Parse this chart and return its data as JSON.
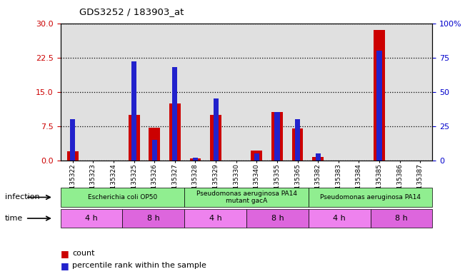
{
  "title": "GDS3252 / 183903_at",
  "samples": [
    "GSM135322",
    "GSM135323",
    "GSM135324",
    "GSM135325",
    "GSM135326",
    "GSM135327",
    "GSM135328",
    "GSM135329",
    "GSM135330",
    "GSM135340",
    "GSM135355",
    "GSM135365",
    "GSM135382",
    "GSM135383",
    "GSM135384",
    "GSM135385",
    "GSM135386",
    "GSM135387"
  ],
  "count_values": [
    2.0,
    0.0,
    0.0,
    10.0,
    7.2,
    12.5,
    0.4,
    10.0,
    0.0,
    2.2,
    10.5,
    7.0,
    0.7,
    0.0,
    0.0,
    28.5,
    0.0,
    0.0
  ],
  "percentile_values": [
    30,
    0,
    0,
    72,
    15,
    68,
    2,
    45,
    0,
    5,
    35,
    30,
    5,
    0,
    0,
    80,
    0,
    0
  ],
  "ylim_left": [
    0,
    30
  ],
  "ylim_right": [
    0,
    100
  ],
  "yticks_left": [
    0,
    7.5,
    15,
    22.5,
    30
  ],
  "yticks_right": [
    0,
    25,
    50,
    75,
    100
  ],
  "ytick_labels_right": [
    "0",
    "25",
    "50",
    "75",
    "100%"
  ],
  "bar_color_count": "#cc0000",
  "bar_color_pct": "#2222cc",
  "infection_groups": [
    {
      "label": "Escherichia coli OP50",
      "start": 0,
      "end": 6,
      "color": "#90ee90"
    },
    {
      "label": "Pseudomonas aeruginosa PA14\nmutant gacA",
      "start": 6,
      "end": 12,
      "color": "#90ee90"
    },
    {
      "label": "Pseudomonas aeruginosa PA14",
      "start": 12,
      "end": 18,
      "color": "#90ee90"
    }
  ],
  "time_groups": [
    {
      "label": "4 h",
      "start": 0,
      "end": 3,
      "color": "#ee82ee"
    },
    {
      "label": "8 h",
      "start": 3,
      "end": 6,
      "color": "#dd66dd"
    },
    {
      "label": "4 h",
      "start": 6,
      "end": 9,
      "color": "#ee82ee"
    },
    {
      "label": "8 h",
      "start": 9,
      "end": 12,
      "color": "#dd66dd"
    },
    {
      "label": "4 h",
      "start": 12,
      "end": 15,
      "color": "#ee82ee"
    },
    {
      "label": "8 h",
      "start": 15,
      "end": 18,
      "color": "#dd66dd"
    }
  ],
  "legend_count_label": "count",
  "legend_pct_label": "percentile rank within the sample",
  "infection_label": "infection",
  "time_label": "time",
  "tick_color_left": "#cc0000",
  "tick_color_right": "#0000cc",
  "plot_bg_color": "#e0e0e0",
  "grid_color": "black"
}
